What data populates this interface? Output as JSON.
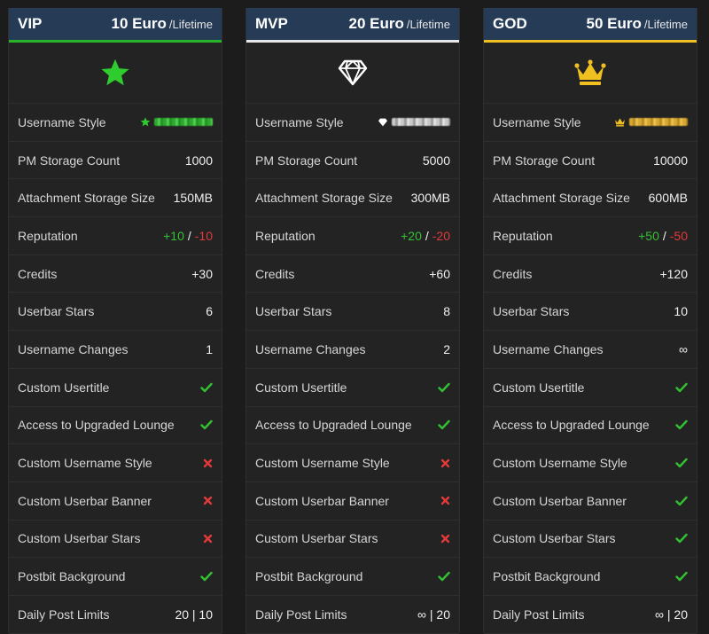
{
  "labels": {
    "username_style": "Username Style",
    "pm_storage": "PM Storage Count",
    "attachment_storage": "Attachment Storage Size",
    "reputation": "Reputation",
    "credits": "Credits",
    "userbar_stars": "Userbar Stars",
    "username_changes": "Username Changes",
    "custom_usertitle": "Custom Usertitle",
    "upgraded_lounge": "Access to Upgraded Lounge",
    "custom_username_style": "Custom Username Style",
    "custom_userbar_banner": "Custom Userbar Banner",
    "custom_userbar_stars": "Custom Userbar Stars",
    "postbit_background": "Postbit Background",
    "daily_post_limits": "Daily Post Limits"
  },
  "rep_separator": "/",
  "colors": {
    "header_bg": "#263b56",
    "vip_accent": "#28b428",
    "mvp_accent": "#e8e8e8",
    "god_accent": "#f0c020",
    "check": "#33c133",
    "cross": "#e23a3a"
  },
  "tiers": [
    {
      "name": "VIP",
      "price": "10 Euro",
      "period": "/Lifetime",
      "icon": "star-icon",
      "pm_storage": "1000",
      "attachment_storage": "150MB",
      "rep_plus": "+10",
      "rep_minus": "-10",
      "credits": "+30",
      "userbar_stars": "6",
      "username_changes": "1",
      "custom_usertitle": "check",
      "upgraded_lounge": "check",
      "custom_username_style": "cross",
      "custom_userbar_banner": "cross",
      "custom_userbar_stars": "cross",
      "postbit_background": "check",
      "daily_post_limits": "20 | 10"
    },
    {
      "name": "MVP",
      "price": "20 Euro",
      "period": "/Lifetime",
      "icon": "diamond-icon",
      "pm_storage": "5000",
      "attachment_storage": "300MB",
      "rep_plus": "+20",
      "rep_minus": "-20",
      "credits": "+60",
      "userbar_stars": "8",
      "username_changes": "2",
      "custom_usertitle": "check",
      "upgraded_lounge": "check",
      "custom_username_style": "cross",
      "custom_userbar_banner": "cross",
      "custom_userbar_stars": "cross",
      "postbit_background": "check",
      "daily_post_limits": "∞ | 20"
    },
    {
      "name": "GOD",
      "price": "50 Euro",
      "period": "/Lifetime",
      "icon": "crown-icon",
      "pm_storage": "10000",
      "attachment_storage": "600MB",
      "rep_plus": "+50",
      "rep_minus": "-50",
      "credits": "+120",
      "userbar_stars": "10",
      "username_changes": "∞",
      "custom_usertitle": "check",
      "upgraded_lounge": "check",
      "custom_username_style": "check",
      "custom_userbar_banner": "check",
      "custom_userbar_stars": "check",
      "postbit_background": "check",
      "daily_post_limits": "∞ | 20"
    }
  ]
}
